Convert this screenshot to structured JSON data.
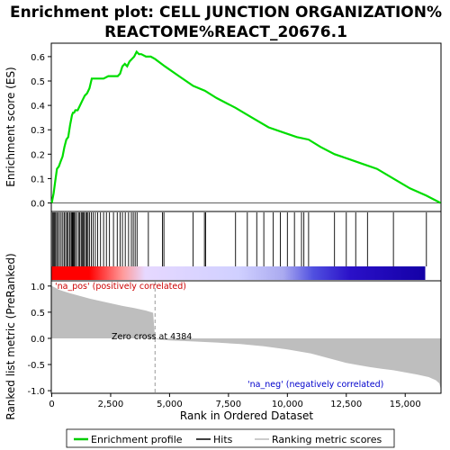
{
  "chart_data": {
    "type": "line",
    "title_line1": "Enrichment plot: CELL JUNCTION ORGANIZATION%",
    "title_line2": "REACTOME%REACT_20676.1",
    "xlabel": "Rank in Ordered Dataset",
    "top_ylabel": "Enrichment score (ES)",
    "bottom_ylabel": "Ranked list metric (PreRanked)",
    "xlim": [
      0,
      16500
    ],
    "x_ticks": [
      0,
      2500,
      5000,
      7500,
      10000,
      12500,
      15000
    ],
    "x_tick_labels": [
      "0",
      "2,500",
      "5,000",
      "7,500",
      "10,000",
      "12,500",
      "15,000"
    ],
    "es_ylim": [
      -0.035,
      0.655
    ],
    "es_ticks": [
      0.0,
      0.1,
      0.2,
      0.3,
      0.4,
      0.5,
      0.6
    ],
    "es_tick_labels": [
      "0.0",
      "0.1",
      "0.2",
      "0.3",
      "0.4",
      "0.5",
      "0.6"
    ],
    "metric_ylim": [
      -1.05,
      1.1
    ],
    "metric_ticks": [
      1.0,
      0.5,
      0.0,
      -0.5,
      -1.0
    ],
    "metric_tick_labels": [
      "1.0",
      "0.5",
      "0.0",
      "-0.5",
      "-1.0"
    ],
    "es_profile": {
      "x": [
        0,
        80,
        150,
        220,
        300,
        380,
        460,
        540,
        620,
        700,
        780,
        860,
        900,
        950,
        1000,
        1100,
        1200,
        1300,
        1400,
        1500,
        1600,
        1700,
        1800,
        1900,
        2000,
        2200,
        2400,
        2600,
        2800,
        2900,
        3000,
        3100,
        3200,
        3300,
        3400,
        3500,
        3600,
        3700,
        3800,
        4000,
        4200,
        4384,
        4800,
        5400,
        6000,
        6500,
        7000,
        7800,
        8500,
        9200,
        9800,
        10400,
        10900,
        11400,
        12000,
        12600,
        13200,
        13800,
        14500,
        15200,
        15900,
        16500
      ],
      "y": [
        0.0,
        0.04,
        0.09,
        0.14,
        0.15,
        0.17,
        0.19,
        0.23,
        0.26,
        0.27,
        0.32,
        0.36,
        0.37,
        0.37,
        0.38,
        0.38,
        0.4,
        0.42,
        0.44,
        0.45,
        0.47,
        0.51,
        0.51,
        0.51,
        0.51,
        0.51,
        0.52,
        0.52,
        0.52,
        0.53,
        0.56,
        0.57,
        0.56,
        0.58,
        0.59,
        0.6,
        0.62,
        0.61,
        0.61,
        0.6,
        0.6,
        0.59,
        0.56,
        0.52,
        0.48,
        0.46,
        0.43,
        0.39,
        0.35,
        0.31,
        0.29,
        0.27,
        0.26,
        0.23,
        0.2,
        0.18,
        0.16,
        0.14,
        0.1,
        0.06,
        0.03,
        0.0
      ]
    },
    "hits": [
      30,
      70,
      110,
      160,
      210,
      260,
      330,
      400,
      470,
      530,
      590,
      650,
      700,
      760,
      820,
      860,
      890,
      920,
      950,
      1000,
      1060,
      1140,
      1190,
      1250,
      1290,
      1330,
      1380,
      1440,
      1490,
      1540,
      1600,
      1680,
      1760,
      1850,
      1950,
      2070,
      2200,
      2320,
      2450,
      2620,
      2780,
      2900,
      3000,
      3120,
      3260,
      3380,
      3460,
      3540,
      3620,
      4100,
      4700,
      4760,
      6000,
      6480,
      6530,
      7800,
      8300,
      8700,
      9000,
      9400,
      9700,
      10000,
      10300,
      10600,
      10700,
      10900,
      12000,
      12500,
      12900,
      13400,
      14500,
      15900
    ],
    "metric_curve": {
      "x": [
        0,
        50,
        150,
        300,
        500,
        800,
        1200,
        1600,
        2000,
        2500,
        3000,
        3500,
        4000,
        4300,
        4384,
        4500,
        5000,
        6000,
        7000,
        8000,
        9000,
        10000,
        10500,
        11000,
        11500,
        12000,
        12500,
        13000,
        13500,
        14000,
        14500,
        15000,
        15500,
        16000,
        16300,
        16450,
        16500
      ],
      "y": [
        1.0,
        0.99,
        0.97,
        0.93,
        0.9,
        0.86,
        0.81,
        0.76,
        0.72,
        0.67,
        0.62,
        0.58,
        0.53,
        0.49,
        0.0,
        -0.02,
        -0.04,
        -0.06,
        -0.08,
        -0.11,
        -0.15,
        -0.21,
        -0.25,
        -0.29,
        -0.35,
        -0.41,
        -0.47,
        -0.51,
        -0.55,
        -0.58,
        -0.61,
        -0.65,
        -0.69,
        -0.74,
        -0.8,
        -0.86,
        -0.95
      ]
    },
    "zero_cross_rank": 4384,
    "zero_cross_label": "Zero cross at 4384",
    "pos_label": "'na_pos' (positively correlated)",
    "neg_label": "'na_neg' (negatively correlated)",
    "legend": {
      "placement": "bottom",
      "items": [
        {
          "label": "Enrichment profile",
          "color": "#00cc00"
        },
        {
          "label": "Hits",
          "color": "#000000"
        },
        {
          "label": "Ranking metric scores",
          "color": "#bbbbbb"
        }
      ]
    },
    "colors": {
      "es_line": "#00dd00",
      "hit": "#000000",
      "metric_fill": "#bebebe",
      "pos_label": "#cc0000",
      "neg_label": "#0000cc",
      "heat_positive": "#ff0000",
      "heat_neutral": "#ddddff",
      "heat_negative": "#1400b4"
    }
  }
}
